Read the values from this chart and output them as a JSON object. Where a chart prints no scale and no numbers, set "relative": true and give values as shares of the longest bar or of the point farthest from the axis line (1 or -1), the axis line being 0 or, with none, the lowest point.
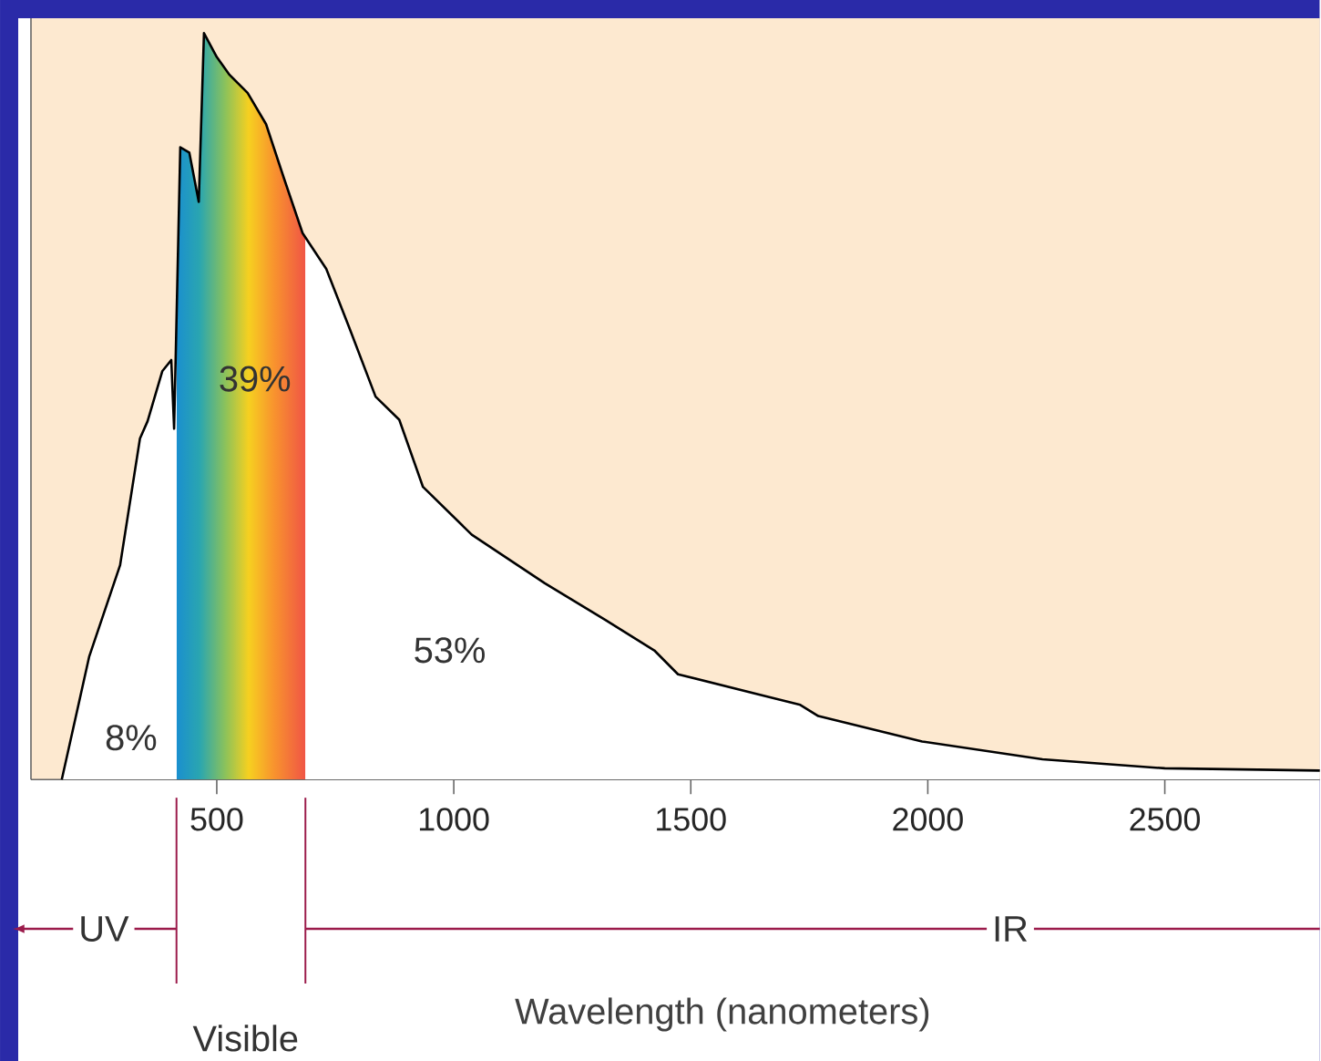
{
  "chart_data": {
    "type": "line",
    "relative": true,
    "xlabel": "Wavelength (nanometers)",
    "x": [
      173,
      231,
      296,
      338,
      354,
      385,
      404,
      410,
      423,
      442,
      462,
      473,
      500,
      527,
      565,
      604,
      642,
      681,
      731,
      781,
      835,
      885,
      935,
      1038,
      1192,
      1319,
      1423,
      1473,
      1731,
      1769,
      1988,
      2242,
      2500,
      2827
    ],
    "series": [
      {
        "color": "#000000",
        "values": [
          0,
          0.165,
          0.287,
          0.457,
          0.48,
          0.547,
          0.562,
          0.47,
          0.847,
          0.84,
          0.774,
          1.0,
          0.968,
          0.944,
          0.92,
          0.878,
          0.805,
          0.732,
          0.684,
          0.603,
          0.513,
          0.482,
          0.392,
          0.328,
          0.263,
          0.214,
          0.173,
          0.141,
          0.1,
          0.085,
          0.051,
          0.027,
          0.015,
          0.012
        ]
      }
    ],
    "xlim": [
      108,
      2827
    ],
    "xticks": [
      500,
      1000,
      1500,
      2000,
      2500
    ],
    "bands": [
      {
        "axis": "x",
        "from": 415,
        "to": 687
      }
    ],
    "annotations": [
      "8%",
      "39%",
      "53%",
      "UV",
      "Visible",
      "IR"
    ]
  }
}
